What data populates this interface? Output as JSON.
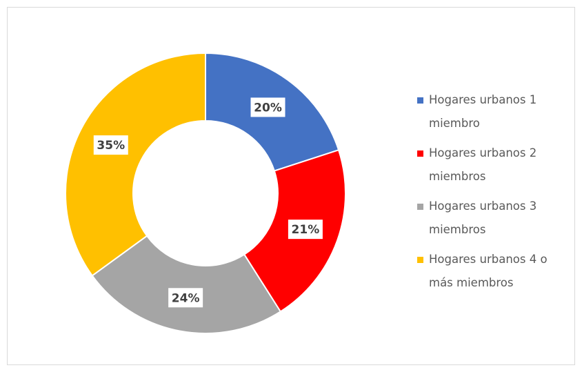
{
  "chart_data": {
    "type": "donut",
    "categories": [
      "Hogares urbanos 1 miembro",
      "Hogares urbanos 2 miembros",
      "Hogares urbanos 3 miembros",
      "Hogares urbanos 4 o más miembros"
    ],
    "values": [
      20,
      21,
      24,
      35
    ],
    "value_labels": [
      "20%",
      "21%",
      "24%",
      "35%"
    ],
    "colors": [
      "#4472c4",
      "#ff0000",
      "#a5a5a5",
      "#ffc000"
    ],
    "legend": "right"
  }
}
